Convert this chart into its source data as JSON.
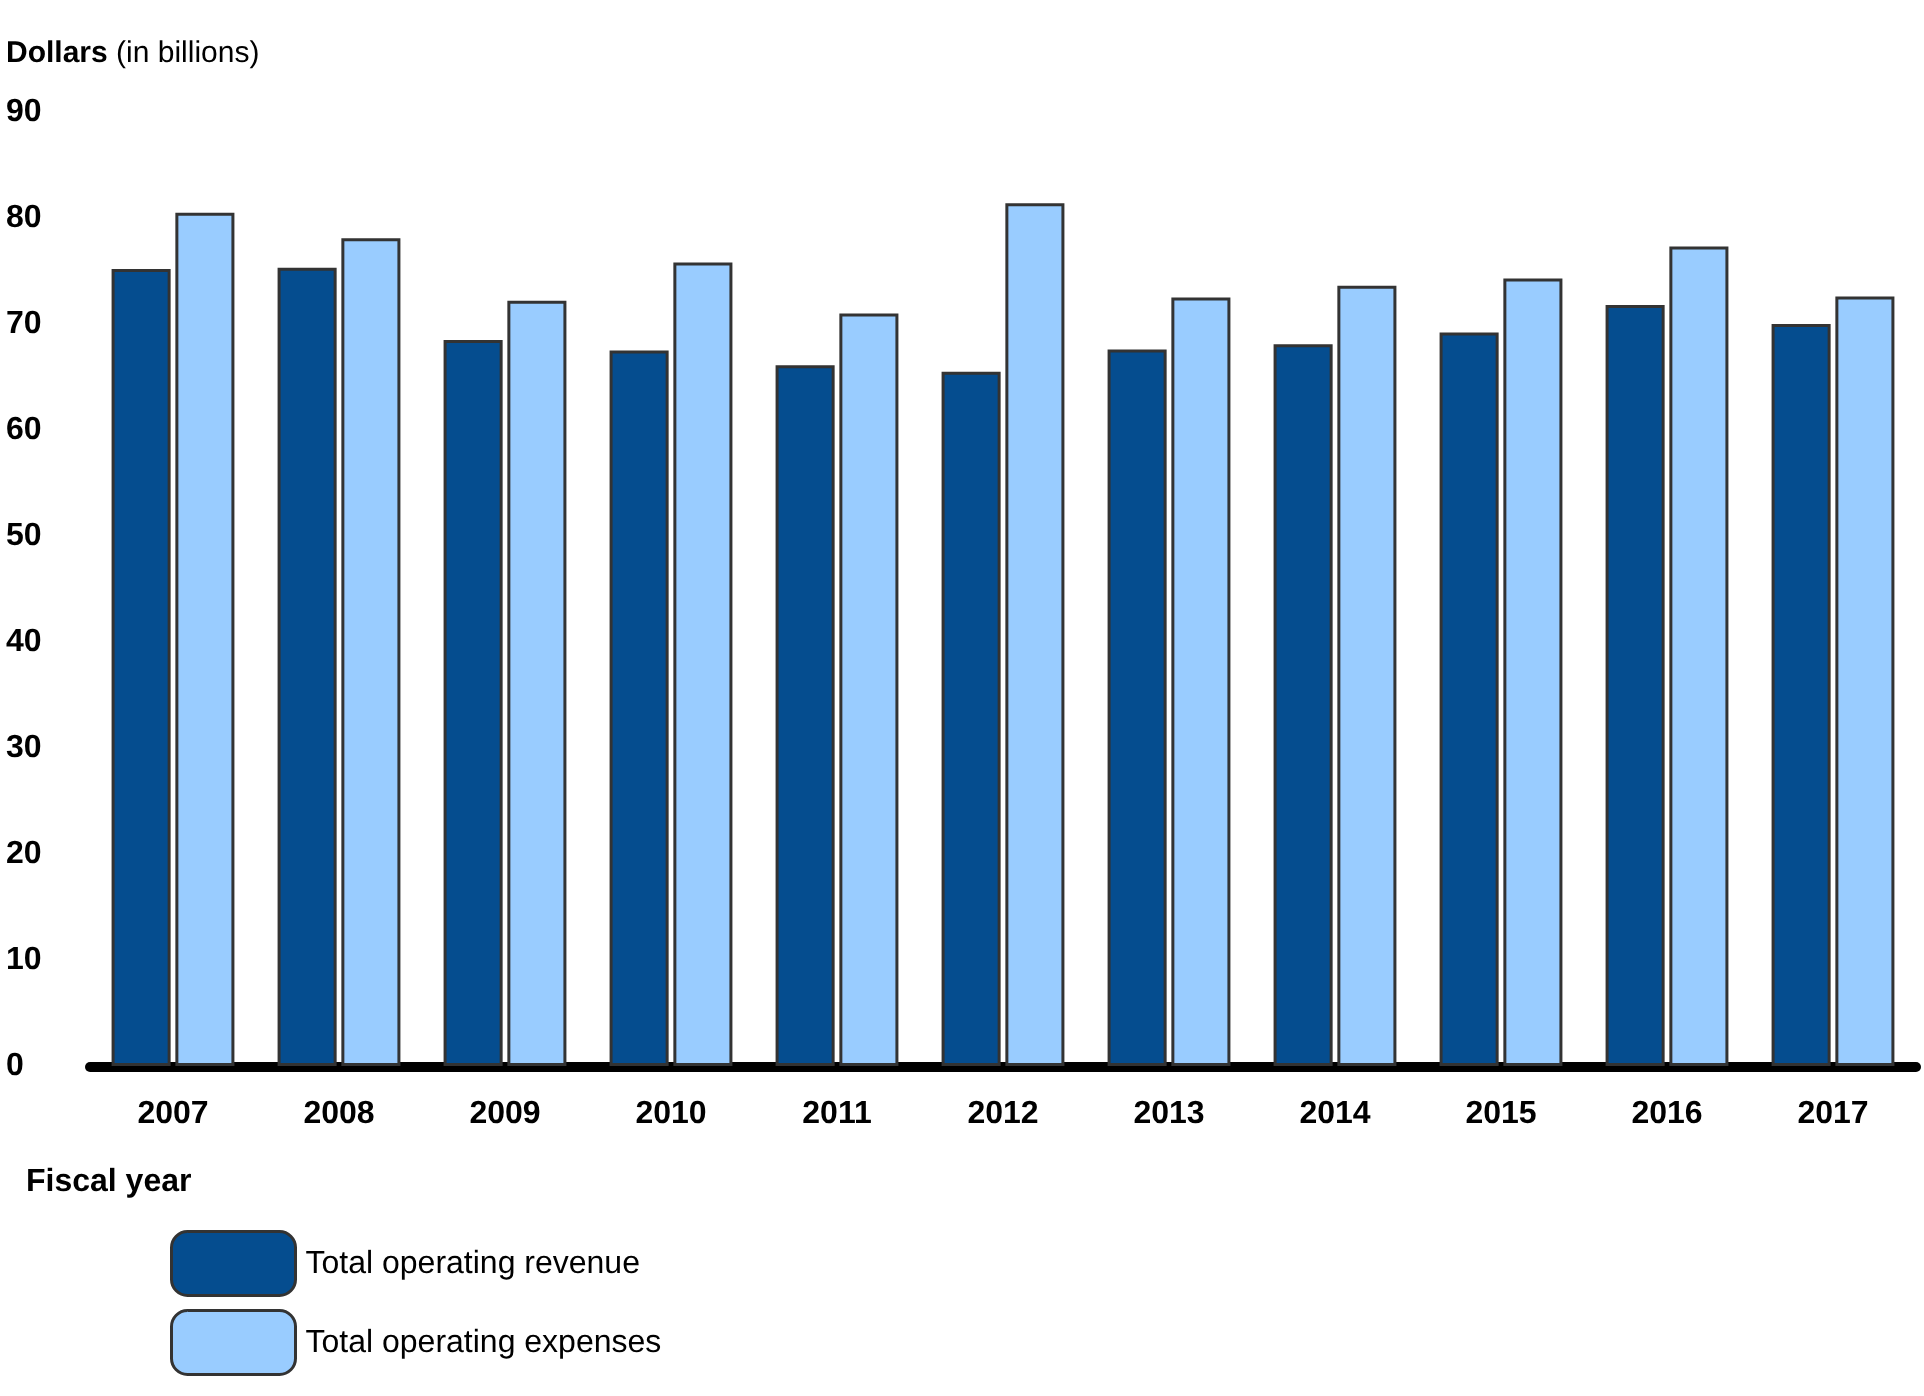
{
  "chart_data": {
    "type": "bar",
    "ylabel": "Dollars (in billions)",
    "xlabel": "Fiscal year",
    "categories": [
      "2007",
      "2008",
      "2009",
      "2010",
      "2011",
      "2012",
      "2013",
      "2014",
      "2015",
      "2016",
      "2017"
    ],
    "series": [
      {
        "name": "Total operating revenue",
        "color": "#054d8f",
        "values": [
          75.2,
          75.3,
          68.5,
          67.5,
          66.1,
          65.5,
          67.6,
          68.1,
          69.2,
          71.8,
          70.0
        ]
      },
      {
        "name": "Total operating expenses",
        "color": "#99ccff",
        "values": [
          80.5,
          78.1,
          72.2,
          75.8,
          71.0,
          81.4,
          72.5,
          73.6,
          74.3,
          77.3,
          72.6
        ]
      }
    ],
    "ylim": [
      0,
      90
    ],
    "yticks": [
      0,
      10,
      20,
      30,
      40,
      50,
      60,
      70,
      80,
      90
    ],
    "grid": false,
    "legend": "bottom left"
  }
}
